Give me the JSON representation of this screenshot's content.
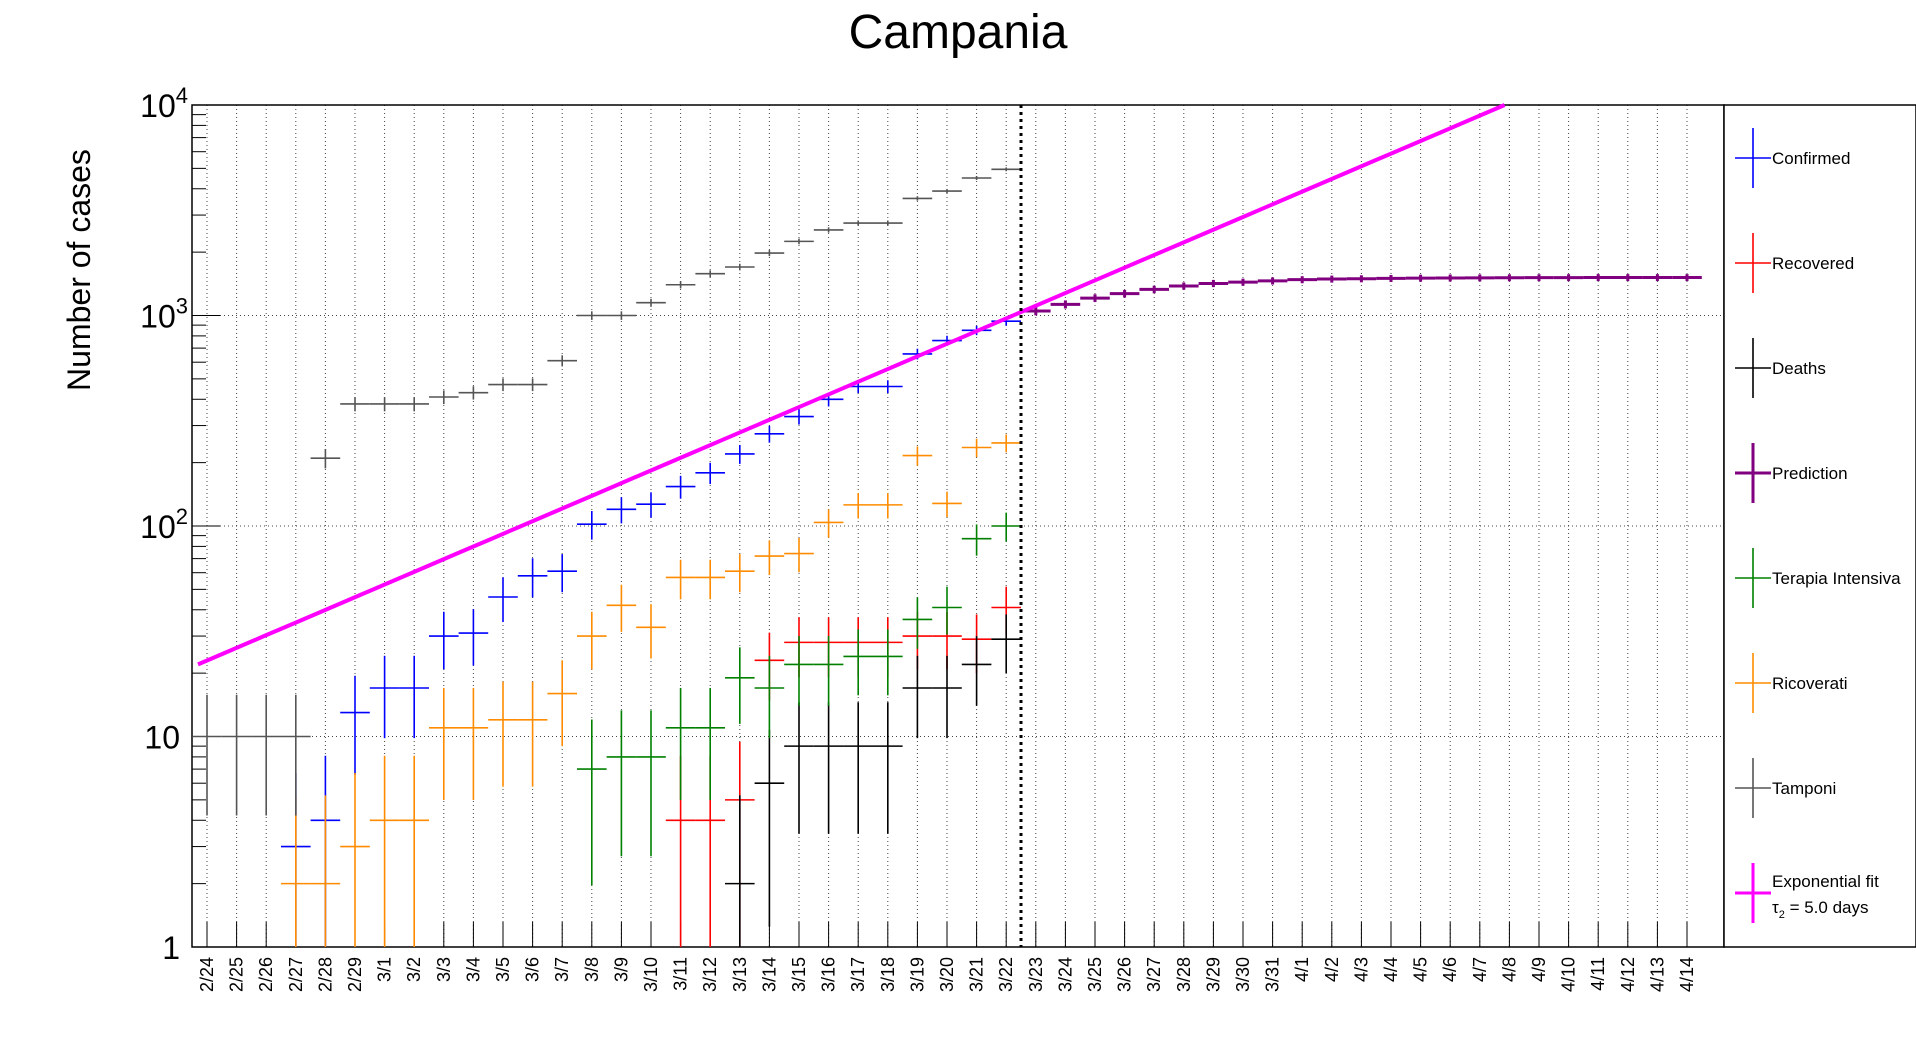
{
  "chart_data": {
    "type": "scatter",
    "title": "Campania",
    "ylabel": "Number of cases",
    "xlabel": "",
    "y_scale": "log",
    "ylim": [
      1,
      10000
    ],
    "y_tick_labels": [
      "1",
      "10",
      "10^2",
      "10^3",
      "10^4"
    ],
    "grid": true,
    "legend_position": "right",
    "x_categories": [
      "2/24",
      "2/25",
      "2/26",
      "2/27",
      "2/28",
      "2/29",
      "3/1",
      "3/2",
      "3/3",
      "3/4",
      "3/5",
      "3/6",
      "3/7",
      "3/8",
      "3/9",
      "3/10",
      "3/11",
      "3/12",
      "3/13",
      "3/14",
      "3/15",
      "3/16",
      "3/17",
      "3/18",
      "3/19",
      "3/20",
      "3/21",
      "3/22",
      "3/23",
      "3/24",
      "3/25",
      "3/26",
      "3/27",
      "3/28",
      "3/29",
      "3/30",
      "3/31",
      "4/1",
      "4/2",
      "4/3",
      "4/4",
      "4/5",
      "4/6",
      "4/7",
      "4/8",
      "4/9",
      "4/10",
      "4/11",
      "4/12",
      "4/13",
      "4/14"
    ],
    "fit_boundary_date": "3/22",
    "series": [
      {
        "name": "Confirmed",
        "color": "#0000ff",
        "x": [
          "2/27",
          "2/28",
          "2/29",
          "3/1",
          "3/2",
          "3/3",
          "3/4",
          "3/5",
          "3/6",
          "3/7",
          "3/8",
          "3/9",
          "3/10",
          "3/11",
          "3/12",
          "3/13",
          "3/14",
          "3/15",
          "3/16",
          "3/17",
          "3/18",
          "3/19",
          "3/20",
          "3/21",
          "3/22"
        ],
        "values": [
          3,
          4,
          13,
          17,
          17,
          30,
          31,
          46,
          58,
          61,
          102,
          120,
          127,
          154,
          179,
          220,
          274,
          331,
          400,
          460,
          460,
          657,
          760,
          850,
          940
        ]
      },
      {
        "name": "Recovered",
        "color": "#ff0000",
        "x": [
          "3/11",
          "3/12",
          "3/13",
          "3/14",
          "3/15",
          "3/16",
          "3/17",
          "3/18",
          "3/19",
          "3/20",
          "3/21",
          "3/22"
        ],
        "values": [
          4,
          4,
          5,
          23,
          28,
          28,
          28,
          28,
          30,
          30,
          29,
          41
        ]
      },
      {
        "name": "Deaths",
        "color": "#000000",
        "x": [
          "3/13",
          "3/14",
          "3/15",
          "3/16",
          "3/17",
          "3/18",
          "3/19",
          "3/20",
          "3/21",
          "3/22"
        ],
        "values": [
          2,
          6,
          9,
          9,
          9,
          9,
          17,
          17,
          22,
          29
        ]
      },
      {
        "name": "Prediction",
        "color": "#800080",
        "x": [
          "3/23",
          "3/24",
          "3/25",
          "3/26",
          "3/27",
          "3/28",
          "3/29",
          "3/30",
          "3/31",
          "4/1",
          "4/2",
          "4/3",
          "4/4",
          "4/5",
          "4/6",
          "4/7",
          "4/8",
          "4/9",
          "4/10",
          "4/11",
          "4/12",
          "4/13",
          "4/14"
        ],
        "values": [
          1050,
          1130,
          1210,
          1270,
          1330,
          1380,
          1420,
          1440,
          1460,
          1480,
          1490,
          1495,
          1500,
          1505,
          1508,
          1510,
          1512,
          1513,
          1514,
          1515,
          1515,
          1515,
          1515
        ]
      },
      {
        "name": "Terapia Intensiva",
        "color": "#008000",
        "x": [
          "3/8",
          "3/9",
          "3/10",
          "3/11",
          "3/12",
          "3/13",
          "3/14",
          "3/15",
          "3/16",
          "3/17",
          "3/18",
          "3/19",
          "3/20",
          "3/21",
          "3/22"
        ],
        "values": [
          7,
          8,
          8,
          11,
          11,
          19,
          17,
          22,
          22,
          24,
          24,
          36,
          41,
          87,
          100
        ]
      },
      {
        "name": "Ricoverati",
        "color": "#ff8c00",
        "x": [
          "2/27",
          "2/28",
          "2/29",
          "3/1",
          "3/2",
          "3/3",
          "3/4",
          "3/5",
          "3/6",
          "3/7",
          "3/8",
          "3/9",
          "3/10",
          "3/11",
          "3/12",
          "3/13",
          "3/14",
          "3/15",
          "3/16",
          "3/17",
          "3/18",
          "3/19",
          "3/20",
          "3/21",
          "3/22"
        ],
        "values": [
          2,
          2,
          3,
          4,
          4,
          11,
          11,
          12,
          12,
          16,
          30,
          42,
          33,
          57,
          57,
          61,
          72,
          74,
          104,
          126,
          126,
          216,
          128,
          236,
          248
        ]
      },
      {
        "name": "Tamponi",
        "color": "#555555",
        "x": [
          "2/24",
          "2/25",
          "2/26",
          "2/27",
          "2/28",
          "2/29",
          "3/1",
          "3/2",
          "3/3",
          "3/4",
          "3/5",
          "3/6",
          "3/7",
          "3/8",
          "3/9",
          "3/10",
          "3/11",
          "3/12",
          "3/13",
          "3/14",
          "3/15",
          "3/16",
          "3/17",
          "3/18",
          "3/19",
          "3/20",
          "3/21",
          "3/22"
        ],
        "values": [
          10,
          10,
          10,
          10,
          210,
          380,
          380,
          380,
          410,
          430,
          470,
          470,
          610,
          1000,
          1000,
          1150,
          1400,
          1580,
          1700,
          1980,
          2250,
          2550,
          2750,
          2750,
          3600,
          3900,
          4500,
          4950
        ]
      },
      {
        "name": "Exponential fit",
        "color": "#ff00ff",
        "fit_line": true,
        "y_at_start": 22,
        "doubling_time_days": 5.0
      }
    ],
    "legend_fit_annotation": "τ",
    "legend_fit_annotation_sub": "2",
    "legend_fit_annotation_tail": " = 5.0 days"
  }
}
